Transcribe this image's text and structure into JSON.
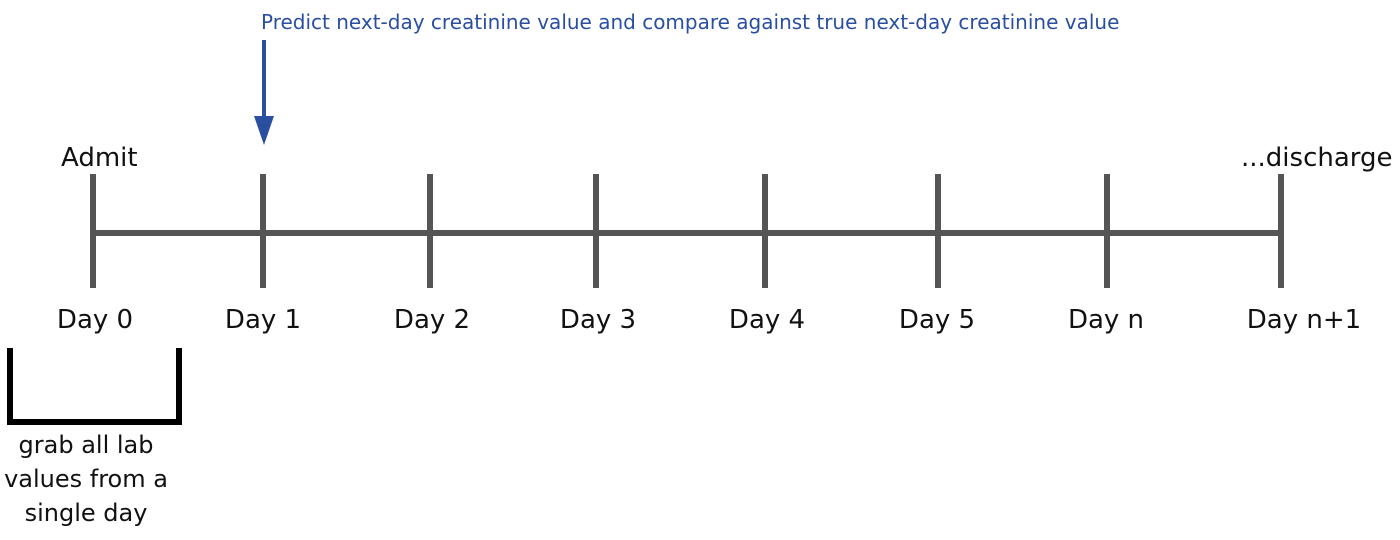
{
  "diagram": {
    "callout": "Predict next-day creatinine value and compare against true next-day creatinine value",
    "admit_label": "Admit",
    "discharge_label": "...discharge",
    "days": [
      "Day 0",
      "Day 1",
      "Day 2",
      "Day 3",
      "Day 4",
      "Day 5",
      "Day n",
      "Day n+1"
    ],
    "bracket_lines": [
      "grab all lab",
      "values from a",
      "single day"
    ],
    "colors": {
      "line": "#555555",
      "arrow": "#2a4fa0",
      "text": "#111111",
      "bracket": "#000000"
    }
  }
}
